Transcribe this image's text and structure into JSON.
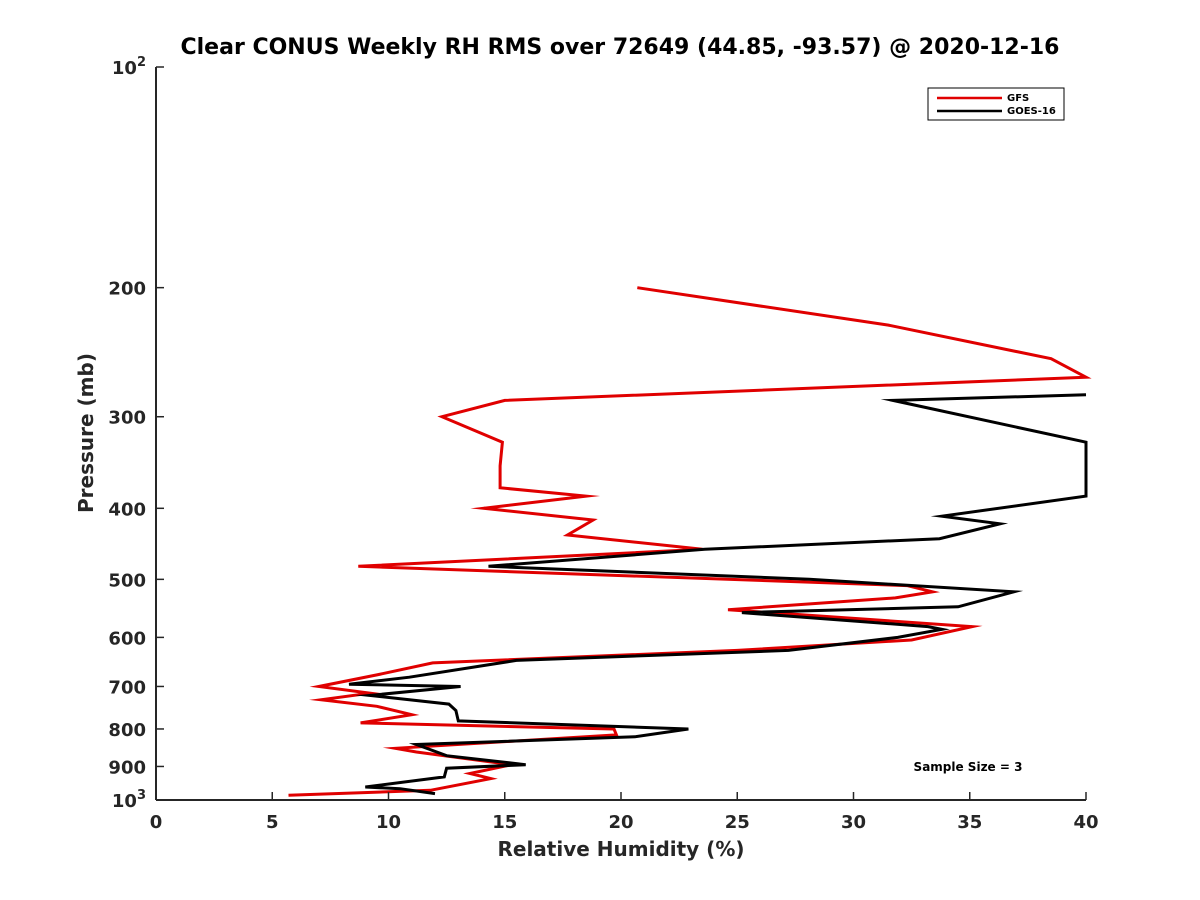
{
  "chart_data": {
    "type": "line",
    "title": "Clear CONUS Weekly RH RMS over 72649 (44.85, -93.57) @ 2020-12-16",
    "xlabel": "Relative Humidity (%)",
    "ylabel": "Pressure (mb)",
    "xlim": [
      0,
      40
    ],
    "ylim": [
      100,
      1000
    ],
    "y_scale": "log",
    "y_reversed": true,
    "grid": false,
    "legend_position": "top-right",
    "x_ticks": [
      "0",
      "5",
      "10",
      "15",
      "20",
      "25",
      "30",
      "35",
      "40"
    ],
    "y_ticks": [
      {
        "value": 100,
        "base": "10",
        "exp": "2"
      },
      {
        "value": 200,
        "label": "200"
      },
      {
        "value": 300,
        "label": "300"
      },
      {
        "value": 400,
        "label": "400"
      },
      {
        "value": 500,
        "label": "500"
      },
      {
        "value": 600,
        "label": "600"
      },
      {
        "value": 700,
        "label": "700"
      },
      {
        "value": 800,
        "label": "800"
      },
      {
        "value": 900,
        "label": "900"
      },
      {
        "value": 1000,
        "base": "10",
        "exp": "3"
      }
    ],
    "annotation": "Sample Size = 3",
    "series": [
      {
        "name": "GFS",
        "color": "#e00000",
        "points": [
          [
            20.7,
            200
          ],
          [
            31.5,
            225
          ],
          [
            38.5,
            250
          ],
          [
            40.0,
            265
          ],
          [
            40.0,
            265
          ],
          [
            15.0,
            285
          ],
          [
            12.3,
            300
          ],
          [
            14.9,
            325
          ],
          [
            14.8,
            350
          ],
          [
            14.8,
            375
          ],
          [
            18.5,
            385
          ],
          [
            14.1,
            400
          ],
          [
            18.8,
            415
          ],
          [
            17.7,
            435
          ],
          [
            23.5,
            455
          ],
          [
            8.7,
            480
          ],
          [
            32.3,
            510
          ],
          [
            33.4,
            520
          ],
          [
            31.8,
            530
          ],
          [
            24.6,
            550
          ],
          [
            35.1,
            580
          ],
          [
            32.5,
            605
          ],
          [
            25.0,
            625
          ],
          [
            11.9,
            650
          ],
          [
            9.5,
            675
          ],
          [
            7.0,
            700
          ],
          [
            9.2,
            715
          ],
          [
            7.1,
            730
          ],
          [
            9.5,
            745
          ],
          [
            11.0,
            765
          ],
          [
            8.8,
            785
          ],
          [
            19.7,
            800
          ],
          [
            19.8,
            815
          ],
          [
            10.3,
            850
          ],
          [
            11.2,
            860
          ],
          [
            15.3,
            895
          ],
          [
            13.5,
            920
          ],
          [
            14.4,
            935
          ],
          [
            11.8,
            970
          ],
          [
            5.7,
            985
          ]
        ]
      },
      {
        "name": "GOES-16",
        "color": "#000000",
        "points": [
          [
            40.0,
            280
          ],
          [
            31.7,
            285
          ],
          [
            40.0,
            325
          ],
          [
            40.0,
            385
          ],
          [
            33.8,
            410
          ],
          [
            36.3,
            420
          ],
          [
            33.7,
            440
          ],
          [
            23.6,
            455
          ],
          [
            14.3,
            480
          ],
          [
            28.1,
            500
          ],
          [
            36.9,
            520
          ],
          [
            34.5,
            545
          ],
          [
            25.2,
            555
          ],
          [
            33.2,
            580
          ],
          [
            33.8,
            585
          ],
          [
            31.9,
            600
          ],
          [
            27.2,
            625
          ],
          [
            15.5,
            645
          ],
          [
            10.9,
            680
          ],
          [
            8.3,
            695
          ],
          [
            13.1,
            700
          ],
          [
            9.2,
            720
          ],
          [
            12.6,
            740
          ],
          [
            12.9,
            755
          ],
          [
            13.0,
            780
          ],
          [
            22.9,
            800
          ],
          [
            20.6,
            820
          ],
          [
            11.2,
            840
          ],
          [
            12.5,
            870
          ],
          [
            15.9,
            895
          ],
          [
            12.5,
            905
          ],
          [
            12.4,
            930
          ],
          [
            9.0,
            960
          ],
          [
            10.5,
            965
          ],
          [
            12.0,
            980
          ]
        ]
      }
    ]
  }
}
